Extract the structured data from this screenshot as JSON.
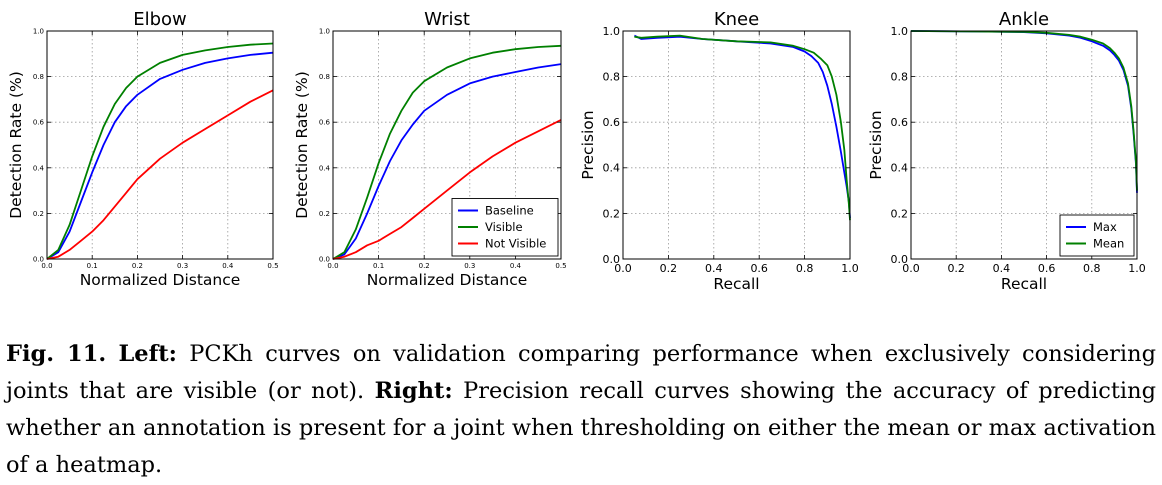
{
  "chart_data": [
    {
      "type": "line",
      "title": "Elbow",
      "xlabel": "Normalized Distance",
      "ylabel": "Detection Rate (%)",
      "xlim": [
        0,
        0.5
      ],
      "ylim": [
        0,
        1.0
      ],
      "xticks": [
        "0.0",
        "0.1",
        "0.2",
        "0.3",
        "0.4",
        "0.5"
      ],
      "yticks": [
        "0.0",
        "0.2",
        "0.4",
        "0.6",
        "0.8",
        "1.0"
      ],
      "grid": true,
      "legend": "none",
      "x": [
        0,
        0.025,
        0.05,
        0.075,
        0.1,
        0.125,
        0.15,
        0.175,
        0.2,
        0.25,
        0.3,
        0.35,
        0.4,
        0.45,
        0.5
      ],
      "series": [
        {
          "name": "Baseline",
          "color": "#0000ff",
          "values": [
            0,
            0.03,
            0.12,
            0.25,
            0.38,
            0.5,
            0.6,
            0.67,
            0.72,
            0.79,
            0.83,
            0.86,
            0.88,
            0.895,
            0.905
          ]
        },
        {
          "name": "Visible",
          "color": "#008000",
          "values": [
            0,
            0.04,
            0.15,
            0.3,
            0.45,
            0.58,
            0.68,
            0.75,
            0.8,
            0.86,
            0.895,
            0.915,
            0.93,
            0.94,
            0.945
          ]
        },
        {
          "name": "Not Visible",
          "color": "#ff0000",
          "values": [
            0,
            0.01,
            0.04,
            0.08,
            0.12,
            0.17,
            0.23,
            0.29,
            0.35,
            0.44,
            0.51,
            0.57,
            0.63,
            0.69,
            0.74
          ]
        }
      ]
    },
    {
      "type": "line",
      "title": "Wrist",
      "xlabel": "Normalized Distance",
      "ylabel": "Detection Rate (%)",
      "xlim": [
        0,
        0.5
      ],
      "ylim": [
        0,
        1.0
      ],
      "xticks": [
        "0.0",
        "0.1",
        "0.2",
        "0.3",
        "0.4",
        "0.5"
      ],
      "yticks": [
        "0.0",
        "0.2",
        "0.4",
        "0.6",
        "0.8",
        "1.0"
      ],
      "grid": true,
      "legend": "bottom-right",
      "x": [
        0,
        0.025,
        0.05,
        0.075,
        0.1,
        0.125,
        0.15,
        0.175,
        0.2,
        0.25,
        0.3,
        0.35,
        0.4,
        0.45,
        0.5
      ],
      "series": [
        {
          "name": "Baseline",
          "color": "#0000ff",
          "values": [
            0,
            0.02,
            0.09,
            0.2,
            0.32,
            0.43,
            0.52,
            0.59,
            0.65,
            0.72,
            0.77,
            0.8,
            0.82,
            0.84,
            0.855
          ]
        },
        {
          "name": "Visible",
          "color": "#008000",
          "values": [
            0,
            0.03,
            0.13,
            0.27,
            0.42,
            0.55,
            0.65,
            0.73,
            0.78,
            0.84,
            0.88,
            0.905,
            0.92,
            0.93,
            0.935
          ]
        },
        {
          "name": "Not Visible",
          "color": "#ff0000",
          "values": [
            0,
            0.01,
            0.03,
            0.06,
            0.08,
            0.11,
            0.14,
            0.18,
            0.22,
            0.3,
            0.38,
            0.45,
            0.51,
            0.56,
            0.61
          ]
        }
      ]
    },
    {
      "type": "line",
      "title": "Knee",
      "xlabel": "Recall",
      "ylabel": "Precision",
      "xlim": [
        0,
        1.0
      ],
      "ylim": [
        0,
        1.0
      ],
      "xticks": [
        "0.0",
        "0.2",
        "0.4",
        "0.6",
        "0.8",
        "1.0"
      ],
      "yticks": [
        "0.0",
        "0.2",
        "0.4",
        "0.6",
        "0.8",
        "1.0"
      ],
      "grid": true,
      "legend": "none",
      "series": [
        {
          "name": "Max",
          "color": "#0000ff",
          "x": [
            0.05,
            0.08,
            0.15,
            0.25,
            0.35,
            0.5,
            0.65,
            0.75,
            0.8,
            0.83,
            0.86,
            0.88,
            0.9,
            0.92,
            0.94,
            0.96,
            0.975,
            0.985,
            0.995,
            1.0
          ],
          "values": [
            0.98,
            0.965,
            0.97,
            0.975,
            0.965,
            0.955,
            0.945,
            0.93,
            0.91,
            0.89,
            0.86,
            0.82,
            0.76,
            0.68,
            0.58,
            0.47,
            0.38,
            0.32,
            0.25,
            0.18
          ]
        },
        {
          "name": "Mean",
          "color": "#008000",
          "x": [
            0.05,
            0.08,
            0.15,
            0.25,
            0.35,
            0.5,
            0.65,
            0.75,
            0.8,
            0.84,
            0.87,
            0.9,
            0.92,
            0.94,
            0.96,
            0.975,
            0.985,
            0.995,
            1.0
          ],
          "values": [
            0.975,
            0.97,
            0.975,
            0.98,
            0.965,
            0.955,
            0.95,
            0.935,
            0.92,
            0.905,
            0.88,
            0.85,
            0.8,
            0.72,
            0.6,
            0.48,
            0.35,
            0.24,
            0.17
          ]
        }
      ]
    },
    {
      "type": "line",
      "title": "Ankle",
      "xlabel": "Recall",
      "ylabel": "Precision",
      "xlim": [
        0,
        1.0
      ],
      "ylim": [
        0,
        1.0
      ],
      "xticks": [
        "0.0",
        "0.2",
        "0.4",
        "0.6",
        "0.8",
        "1.0"
      ],
      "yticks": [
        "0.0",
        "0.2",
        "0.4",
        "0.6",
        "0.8",
        "1.0"
      ],
      "grid": true,
      "legend": "bottom-right",
      "series": [
        {
          "name": "Max",
          "color": "#0000ff",
          "x": [
            0.0,
            0.3,
            0.5,
            0.6,
            0.7,
            0.75,
            0.8,
            0.85,
            0.88,
            0.9,
            0.92,
            0.94,
            0.96,
            0.975,
            0.985,
            0.995,
            1.0
          ],
          "values": [
            1.0,
            0.998,
            0.995,
            0.99,
            0.98,
            0.97,
            0.955,
            0.935,
            0.915,
            0.895,
            0.87,
            0.83,
            0.76,
            0.66,
            0.55,
            0.42,
            0.29
          ]
        },
        {
          "name": "Mean",
          "color": "#008000",
          "x": [
            0.0,
            0.3,
            0.5,
            0.6,
            0.7,
            0.75,
            0.8,
            0.85,
            0.88,
            0.9,
            0.92,
            0.94,
            0.96,
            0.975,
            0.985,
            0.995,
            1.0
          ],
          "values": [
            1.0,
            0.998,
            0.996,
            0.992,
            0.983,
            0.975,
            0.962,
            0.945,
            0.925,
            0.905,
            0.88,
            0.84,
            0.77,
            0.67,
            0.56,
            0.43,
            0.3
          ]
        }
      ]
    }
  ],
  "caption": {
    "fig_label": "Fig. 11.",
    "left_label": "Left:",
    "left_text": "PCKh curves on validation comparing performance when exclusively considering joints that are visible (or not).",
    "right_label": "Right:",
    "right_text": "Precision recall curves showing the accuracy of predicting whether an annotation is present for a joint when thresholding on either the mean or max activation of a heatmap."
  }
}
